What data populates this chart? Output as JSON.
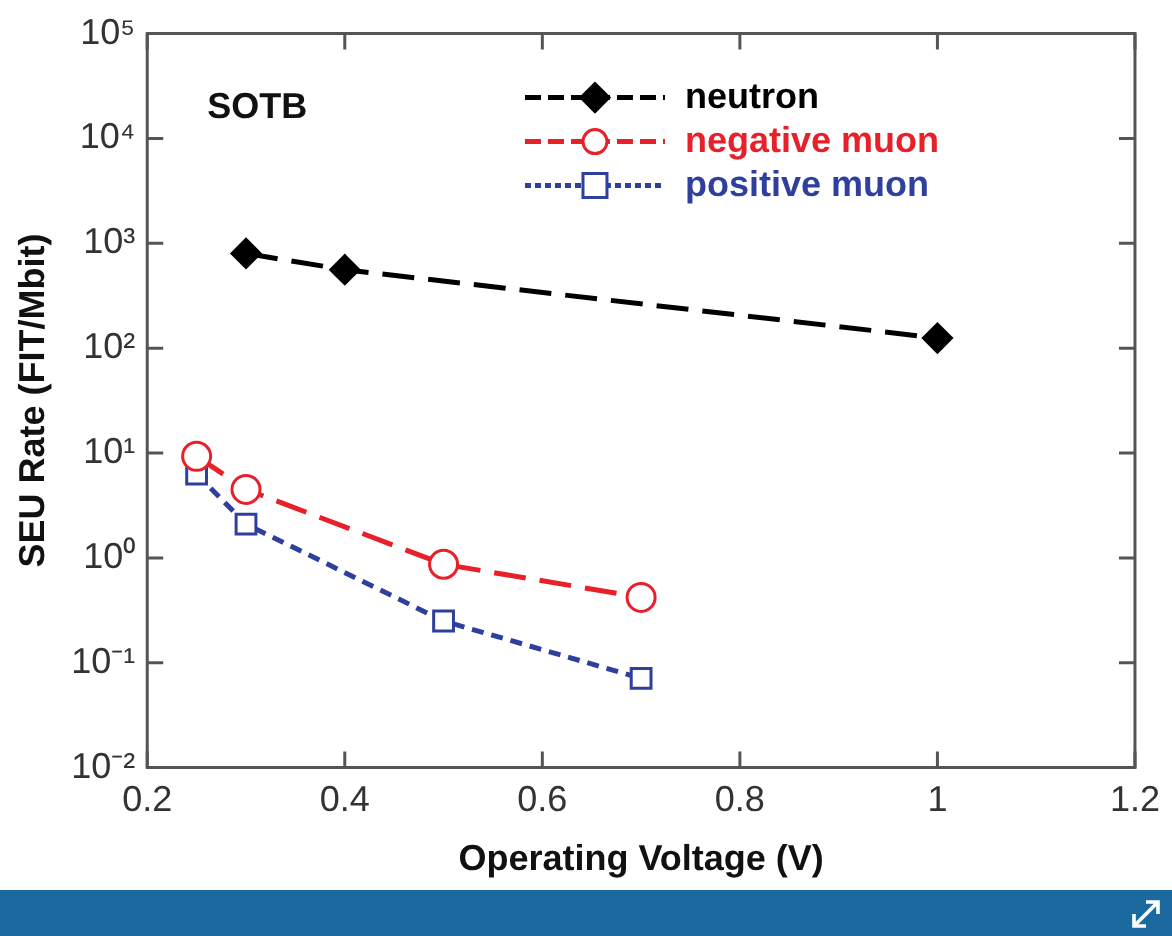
{
  "chart_data": {
    "type": "line",
    "xlabel": "Operating Voltage (V)",
    "ylabel": "SEU Rate (FIT/Mbit)",
    "annotations": [
      "SOTB"
    ],
    "log": "y",
    "grid": false,
    "legend": "top right",
    "xlim": [
      0.2,
      1.2
    ],
    "xticks": [
      0.2,
      0.4,
      0.6,
      0.8,
      1,
      1.2
    ],
    "ylim": [
      0.01,
      100000
    ],
    "yticks": [
      {
        "value": 0.01,
        "label": "10⁻²"
      },
      {
        "value": 0.1,
        "label": "10⁻¹"
      },
      {
        "value": 1,
        "label": "10⁰"
      },
      {
        "value": 10,
        "label": "10¹"
      },
      {
        "value": 100,
        "label": "10²"
      },
      {
        "value": 1000,
        "label": "10³"
      },
      {
        "value": 10000,
        "label": "10⁴"
      },
      {
        "value": 100000,
        "label": "10⁵"
      }
    ],
    "series": [
      {
        "name": "neutron",
        "color": "#000000",
        "marker": "diamond",
        "line_style": "dashed",
        "x": [
          0.3,
          0.4,
          1.0
        ],
        "values": [
          800,
          560,
          125
        ]
      },
      {
        "name": "negative muon",
        "color": "#e8202a",
        "marker": "circle",
        "line_style": "dashed",
        "x": [
          0.25,
          0.3,
          0.5,
          0.7
        ],
        "values": [
          9.3,
          4.5,
          0.87,
          0.42
        ]
      },
      {
        "name": "positive muon",
        "color": "#2e3f9e",
        "marker": "square",
        "line_style": "dotted",
        "x": [
          0.25,
          0.3,
          0.5,
          0.7
        ],
        "values": [
          6.3,
          2.1,
          0.25,
          0.071
        ]
      }
    ]
  }
}
